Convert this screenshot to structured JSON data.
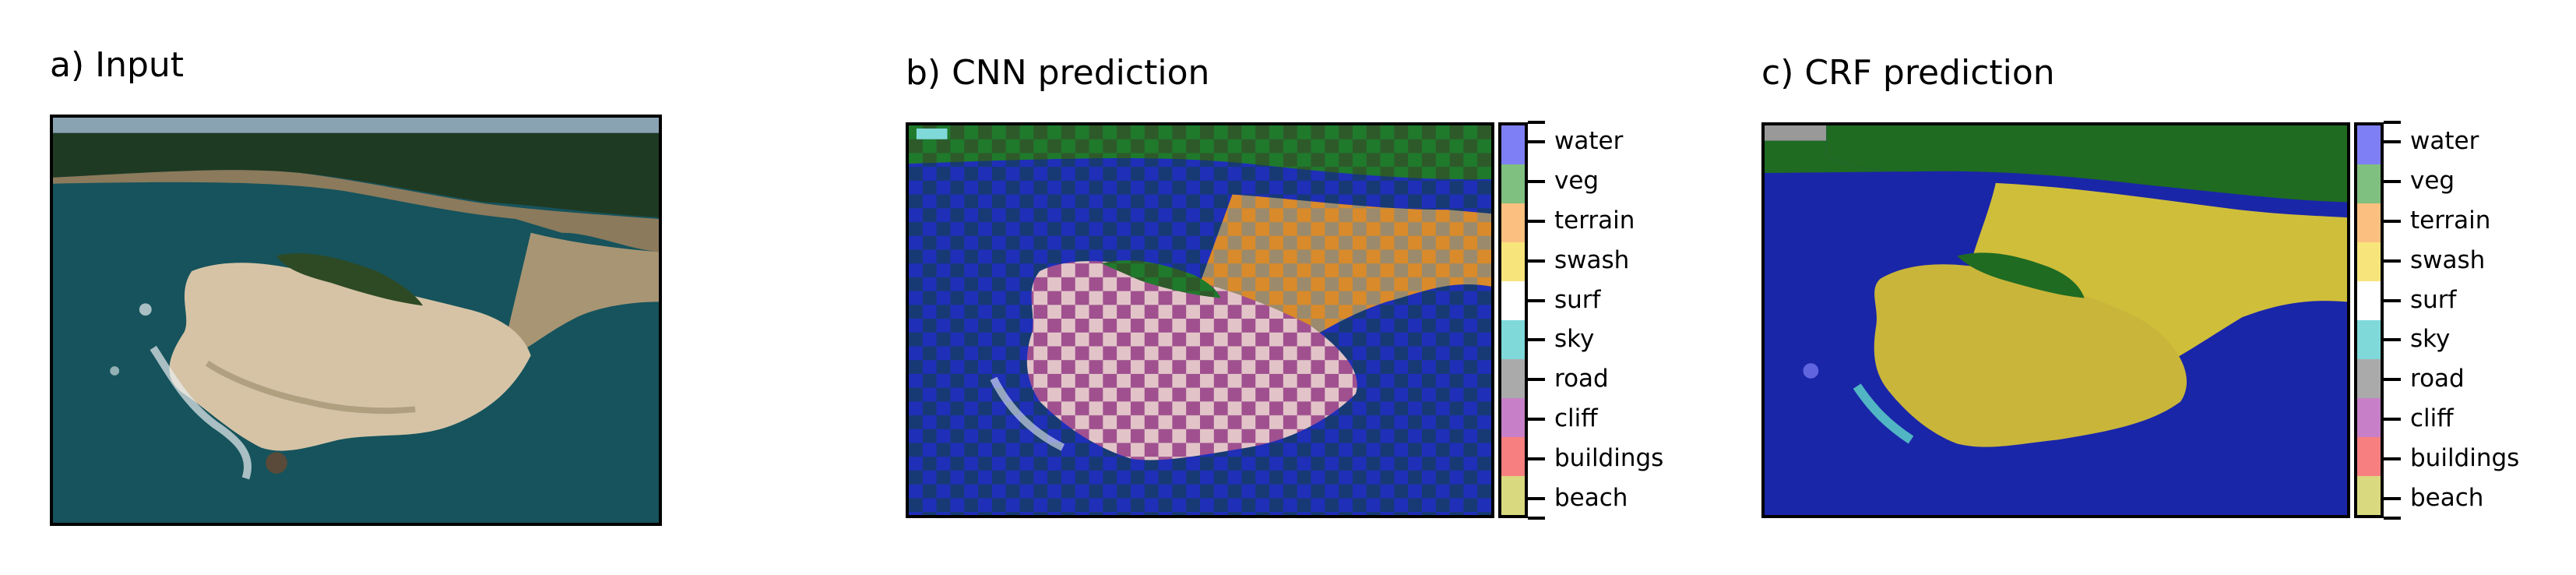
{
  "panels": {
    "a": {
      "title": "a) Input"
    },
    "b": {
      "title": "b) CNN prediction"
    },
    "c": {
      "title": "c) CRF prediction"
    }
  },
  "legend": {
    "classes": [
      {
        "label": "water",
        "color": "#7f7ff5"
      },
      {
        "label": "veg",
        "color": "#7fbf7f"
      },
      {
        "label": "terrain",
        "color": "#fbbf7f"
      },
      {
        "label": "swash",
        "color": "#f7e57b"
      },
      {
        "label": "surf",
        "color": "#ffffff"
      },
      {
        "label": "sky",
        "color": "#7fd9d9"
      },
      {
        "label": "road",
        "color": "#aaaaaa"
      },
      {
        "label": "cliff",
        "color": "#c77fc7"
      },
      {
        "label": "buildings",
        "color": "#f77f7f"
      },
      {
        "label": "beach",
        "color": "#d9d97f"
      }
    ]
  }
}
